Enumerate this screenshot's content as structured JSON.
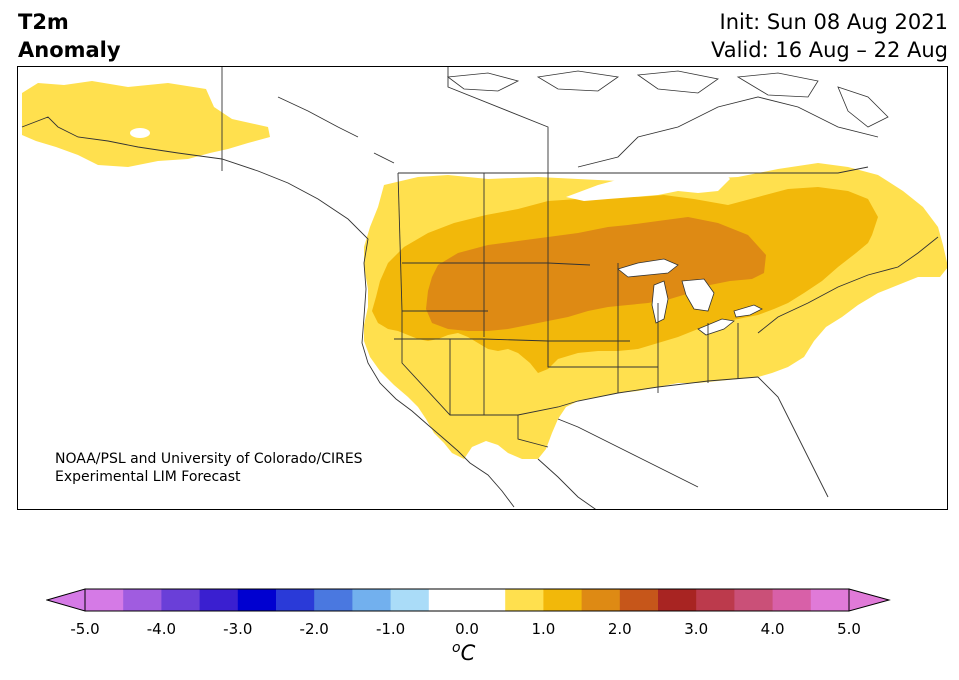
{
  "title": {
    "line1": "T2m",
    "line2": "Anomaly"
  },
  "header_right": {
    "init": "Init: Sun 08 Aug 2021",
    "valid": "Valid: 16 Aug – 22 Aug"
  },
  "credit": {
    "line1": "NOAA/PSL and University of Colorado/CIRES",
    "line2": "Experimental LIM Forecast"
  },
  "colorbar": {
    "unit_sup": "o",
    "unit_letter": "C",
    "ticks": [
      "-5.0",
      "-4.0",
      "-3.0",
      "-2.0",
      "-1.0",
      "0.0",
      "1.0",
      "2.0",
      "3.0",
      "4.0",
      "5.0"
    ],
    "extend_low_color": "#d57ae6",
    "extend_high_color": "#e07ad8",
    "bins": [
      {
        "range": [
          -5.0,
          -4.5
        ],
        "color": "#d57ae6"
      },
      {
        "range": [
          -4.5,
          -4.0
        ],
        "color": "#a05ce0"
      },
      {
        "range": [
          -4.0,
          -3.5
        ],
        "color": "#6a3fd8"
      },
      {
        "range": [
          -3.5,
          -3.0
        ],
        "color": "#3a1fd0"
      },
      {
        "range": [
          -3.0,
          -2.5
        ],
        "color": "#0000d0"
      },
      {
        "range": [
          -2.5,
          -2.0
        ],
        "color": "#2a3ad8"
      },
      {
        "range": [
          -2.0,
          -1.5
        ],
        "color": "#4a78e0"
      },
      {
        "range": [
          -1.5,
          -1.0
        ],
        "color": "#72b0ee"
      },
      {
        "range": [
          -1.0,
          -0.5
        ],
        "color": "#aadcf8"
      },
      {
        "range": [
          -0.5,
          0.0
        ],
        "color": "#ffffff"
      },
      {
        "range": [
          0.0,
          0.5
        ],
        "color": "#ffffff"
      },
      {
        "range": [
          0.5,
          1.0
        ],
        "color": "#ffe04e"
      },
      {
        "range": [
          1.0,
          1.5
        ],
        "color": "#f2b80a"
      },
      {
        "range": [
          1.5,
          2.0
        ],
        "color": "#de8a14"
      },
      {
        "range": [
          2.0,
          2.5
        ],
        "color": "#c6561a"
      },
      {
        "range": [
          2.5,
          3.0
        ],
        "color": "#a82422"
      },
      {
        "range": [
          3.0,
          3.5
        ],
        "color": "#bc3a4c"
      },
      {
        "range": [
          3.5,
          4.0
        ],
        "color": "#ca5078"
      },
      {
        "range": [
          4.0,
          4.5
        ],
        "color": "#d860a8"
      },
      {
        "range": [
          4.5,
          5.0
        ],
        "color": "#e07ad8"
      }
    ]
  },
  "map": {
    "region": "North America",
    "variable": "2 m temperature anomaly",
    "fill_colors": {
      "level_0_5": "#ffe04e",
      "level_1_0": "#f2b80a",
      "level_1_5": "#de8a14"
    }
  }
}
